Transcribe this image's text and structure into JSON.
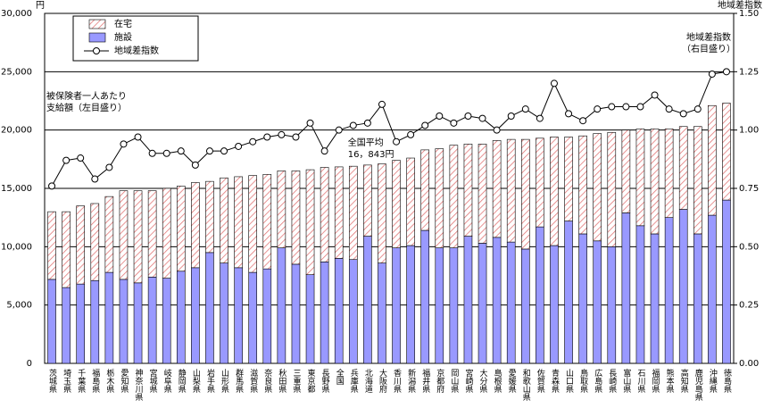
{
  "chart_data": {
    "type": "stacked-bar-line",
    "y_label": "円",
    "y2_label": "地域差指数",
    "categories": [
      "茨城県",
      "埼玉県",
      "千葉県",
      "福島県",
      "栃木県",
      "愛知県",
      "神奈川県",
      "宮城県",
      "岐阜県",
      "静岡県",
      "山梨県",
      "岩手県",
      "山形県",
      "群馬県",
      "滋賀県",
      "奈良県",
      "秋田県",
      "三重県",
      "東京都",
      "長野県",
      "全国",
      "兵庫県",
      "北海道",
      "大阪府",
      "香川県",
      "新潟県",
      "福井県",
      "京都府",
      "岡山県",
      "宮崎県",
      "大分県",
      "島根県",
      "愛媛県",
      "和歌山県",
      "佐賀県",
      "青森県",
      "山口県",
      "鳥取県",
      "広島県",
      "長崎県",
      "富山県",
      "石川県",
      "福岡県",
      "熊本県",
      "高知県",
      "鹿児島県",
      "沖縄県",
      "徳島県"
    ],
    "series": [
      {
        "name": "施設",
        "color": "#9999ff",
        "values": [
          7200,
          6500,
          6800,
          7100,
          7800,
          7200,
          6900,
          7400,
          7300,
          7900,
          8200,
          9500,
          8600,
          8200,
          7800,
          8100,
          9900,
          8500,
          7600,
          8700,
          9000,
          8900,
          10900,
          8600,
          9900,
          10100,
          11400,
          9900,
          9900,
          10900,
          10300,
          10800,
          10400,
          9800,
          11700,
          10100,
          12200,
          11100,
          10500,
          10000,
          12900,
          11800,
          11100,
          12500,
          13200,
          11100,
          12700,
          14000
        ]
      },
      {
        "name": "在宅",
        "color": "#ff9999",
        "values": [
          5800,
          6500,
          6700,
          6600,
          6500,
          7600,
          7900,
          7400,
          7700,
          7300,
          7300,
          6100,
          7300,
          7800,
          8300,
          8100,
          6600,
          8000,
          9000,
          8100,
          7843,
          8000,
          6100,
          8500,
          7500,
          7500,
          6900,
          8500,
          8800,
          7900,
          8500,
          8300,
          8800,
          9400,
          7600,
          9300,
          7200,
          8400,
          9200,
          9800,
          7100,
          8300,
          9000,
          7600,
          7100,
          9200,
          9400,
          8300
        ]
      },
      {
        "name": "地域差指数",
        "color": "#000000",
        "axis": "y2",
        "values": [
          0.76,
          0.87,
          0.88,
          0.79,
          0.84,
          0.94,
          0.97,
          0.9,
          0.9,
          0.91,
          0.85,
          0.91,
          0.91,
          0.93,
          0.95,
          0.97,
          0.98,
          0.97,
          1.03,
          0.91,
          1.0,
          1.02,
          1.03,
          1.11,
          0.95,
          0.98,
          1.02,
          1.06,
          1.03,
          1.06,
          1.05,
          1.0,
          1.06,
          1.09,
          1.05,
          1.2,
          1.07,
          1.04,
          1.09,
          1.1,
          1.1,
          1.1,
          1.15,
          1.09,
          1.07,
          1.09,
          1.24,
          1.25
        ]
      }
    ],
    "ylim": [
      0,
      30000
    ],
    "yticks": [
      0,
      {
        "value": 5000,
        "label": "5,000"
      },
      {
        "value": 10000,
        "label": "10,000"
      },
      {
        "value": 15000,
        "label": "15,000"
      },
      {
        "value": 20000,
        "label": "20,000"
      },
      {
        "value": 25000,
        "label": "25,000"
      },
      {
        "value": 30000,
        "label": "30,000"
      }
    ],
    "y2lim": [
      0,
      1.5
    ],
    "y2ticks": [
      {
        "value": 0,
        "label": "0.00"
      },
      {
        "value": 0.25,
        "label": "0.25"
      },
      {
        "value": 0.5,
        "label": "0.50"
      },
      {
        "value": 0.75,
        "label": "0.75"
      },
      {
        "value": 1,
        "label": "1.00"
      },
      {
        "value": 1.25,
        "label": "1.25"
      },
      {
        "value": 1.5,
        "label": "1.50"
      }
    ],
    "grid": true,
    "annotations": [
      {
        "lines": [
          "被保険者一人あたり",
          "支給額（左目盛り）"
        ]
      },
      {
        "lines": [
          "地域差指数",
          "（右目盛り）"
        ]
      },
      {
        "lines": [
          "全国平均",
          "16，843円"
        ]
      }
    ]
  }
}
